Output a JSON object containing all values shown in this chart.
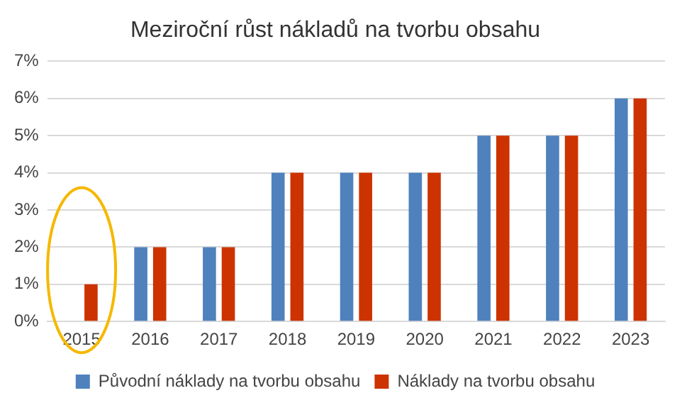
{
  "chart_data": {
    "type": "bar",
    "title": "Meziroční růst nákladů na tvorbu obsahu",
    "categories": [
      "2015",
      "2016",
      "2017",
      "2018",
      "2019",
      "2020",
      "2021",
      "2022",
      "2023"
    ],
    "series": [
      {
        "name": "Původní náklady na tvorbu obsahu",
        "color": "#4f81bd",
        "values": [
          null,
          2,
          2,
          4,
          4,
          4,
          5,
          5,
          6
        ]
      },
      {
        "name": "Náklady na tvorbu obsahu",
        "color": "#cc3300",
        "values": [
          1,
          2,
          2,
          4,
          4,
          4,
          5,
          5,
          6
        ]
      }
    ],
    "ylim": [
      0,
      7
    ],
    "yticks": [
      {
        "value": 0,
        "label": "0%"
      },
      {
        "value": 1,
        "label": "1%"
      },
      {
        "value": 2,
        "label": "2%"
      },
      {
        "value": 3,
        "label": "3%"
      },
      {
        "value": 4,
        "label": "4%"
      },
      {
        "value": 5,
        "label": "5%"
      },
      {
        "value": 6,
        "label": "6%"
      },
      {
        "value": 7,
        "label": "7%"
      }
    ],
    "grid": "y",
    "legend": "bottom"
  }
}
